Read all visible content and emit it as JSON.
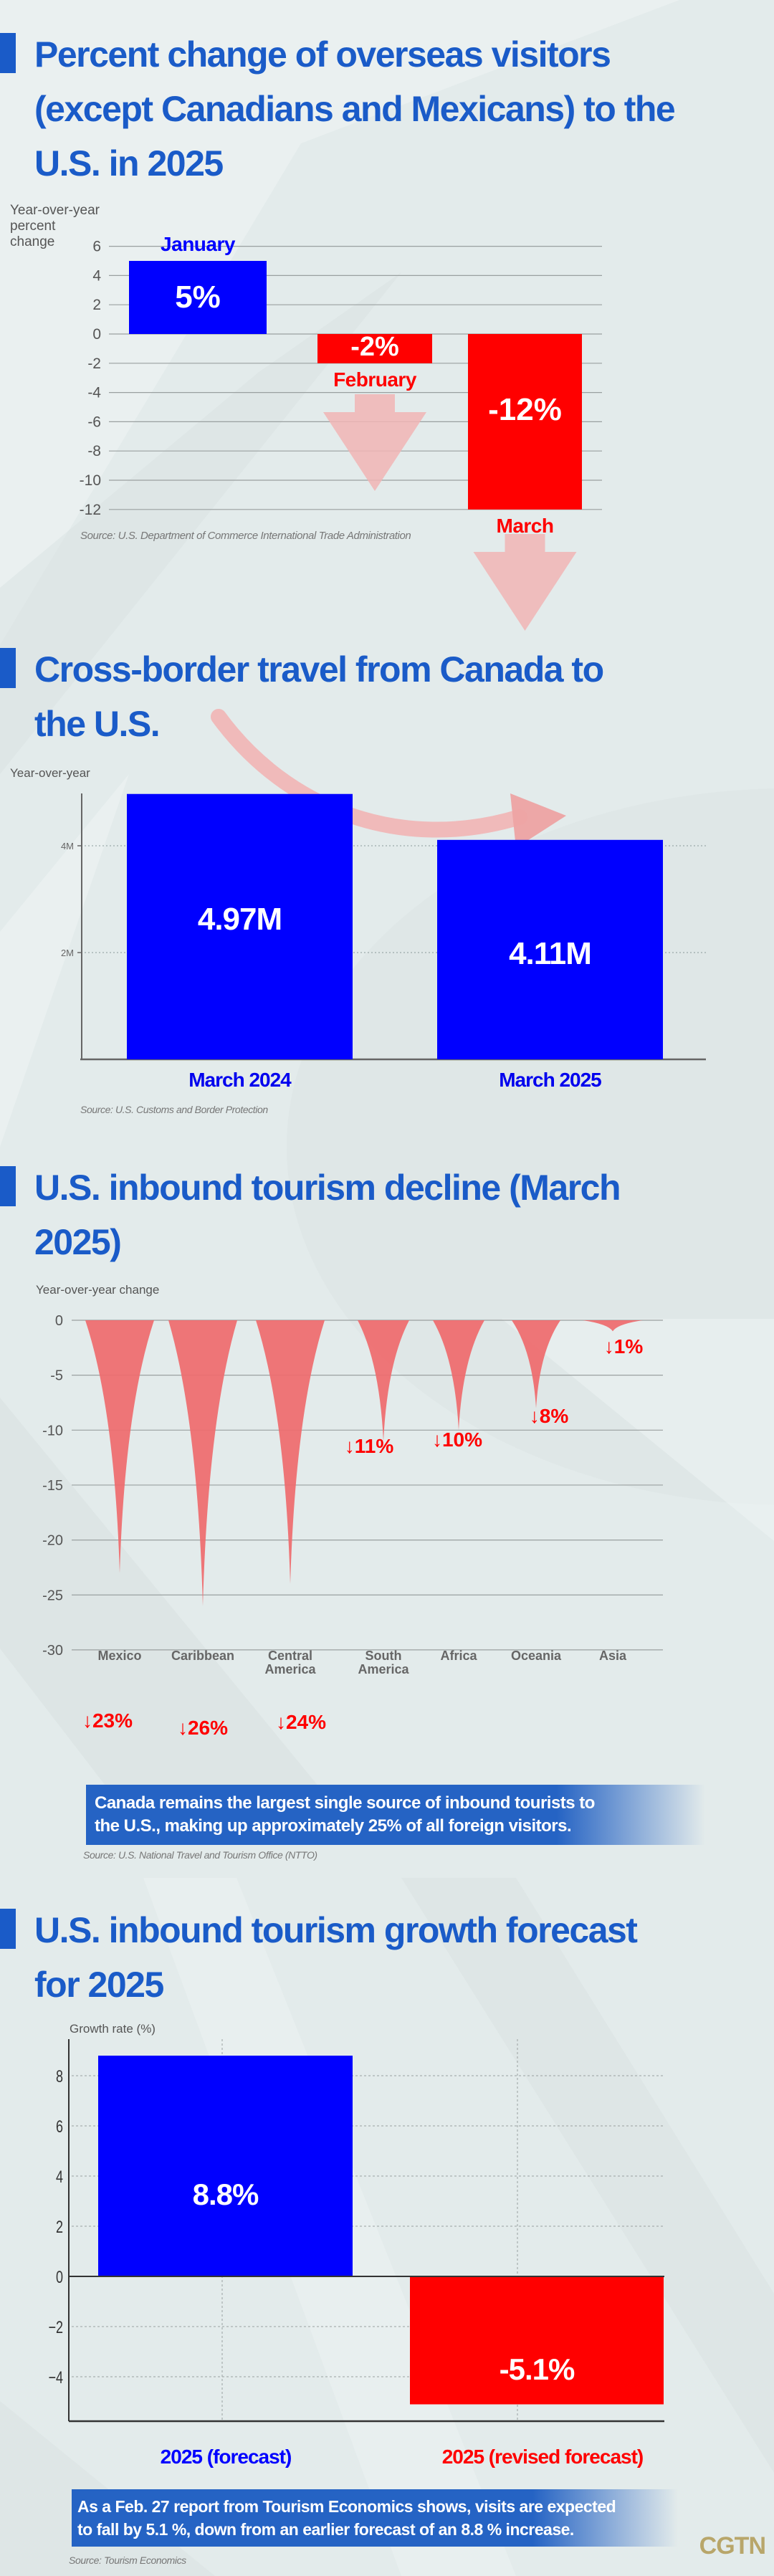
{
  "logo": "CGTN",
  "colors": {
    "title": "#1a5bc8",
    "blue_bar": "#0000ff",
    "red_bar": "#ff0000",
    "funnel": "#ef6a6c",
    "arrow": "#f1b5b5"
  },
  "section1": {
    "title_lines": [
      "Percent change of overseas visitors",
      "(except Canadians and Mexicans) to the",
      "U.S. in 2025"
    ],
    "source": "Source: U.S. Department of Commerce International Trade Administration"
  },
  "section2": {
    "title_lines": [
      "Cross-border travel from Canada to",
      "the U.S."
    ],
    "source": "Source: U.S. Customs and Border Protection"
  },
  "section3": {
    "title_lines": [
      "U.S. inbound tourism decline (March",
      "2025)"
    ],
    "note_lines": [
      "Canada remains the largest single source of inbound tourists to",
      "the U.S., making up approximately 25% of all foreign visitors."
    ],
    "source": "Source: U.S. National Travel and Tourism Office (NTTO)"
  },
  "section4": {
    "title_lines": [
      "U.S. inbound tourism growth forecast",
      "for 2025"
    ],
    "note_lines": [
      "As a Feb. 27 report from Tourism Economics shows, visits are expected",
      "to fall by 5.1 %, down from an earlier forecast of an  8.8 % increase."
    ],
    "source": "Source: Tourism Economics"
  },
  "chart_data": [
    {
      "type": "bar",
      "title": "Percent change of overseas visitors (except Canadians and Mexicans) to the U.S. in 2025",
      "ylabel": "Year-over-year percent change",
      "xlabel": "",
      "categories": [
        "January",
        "February",
        "March"
      ],
      "values": [
        5,
        -2,
        -12
      ],
      "data_labels": [
        "5%",
        "-2%",
        "-12%"
      ],
      "bar_colors": [
        "#0000ff",
        "#ff0000",
        "#ff0000"
      ],
      "yticks": [
        6,
        4,
        2,
        0,
        -2,
        -4,
        -6,
        -8,
        -10,
        -12
      ],
      "ylim": [
        -12,
        6
      ],
      "grid": true
    },
    {
      "type": "bar",
      "title": "Cross-border travel from Canada to the U.S.",
      "ylabel": "Year-over-year",
      "xlabel": "",
      "categories": [
        "March 2024",
        "March 2025"
      ],
      "values": [
        4.97,
        4.11
      ],
      "units": "M",
      "data_labels": [
        "4.97M",
        "4.11M"
      ],
      "yticks": [
        2,
        4
      ],
      "ytick_labels": [
        "2M",
        "4M"
      ],
      "ylim": [
        0,
        5
      ],
      "grid": true
    },
    {
      "type": "bar",
      "title": "U.S. inbound tourism decline (March 2025)",
      "ylabel": "Year-over-year change",
      "xlabel": "",
      "categories": [
        "Mexico",
        "Caribbean",
        "Central America",
        "South America",
        "Africa",
        "Oceania",
        "Asia"
      ],
      "values": [
        -23,
        -26,
        -24,
        -11,
        -10,
        -8,
        -1
      ],
      "data_labels": [
        "↓23%",
        "↓26%",
        "↓24%",
        "↓11%",
        "↓10%",
        "↓8%",
        "↓1%"
      ],
      "yticks": [
        0,
        -5,
        -10,
        -15,
        -20,
        -25,
        -30
      ],
      "ylim": [
        -30,
        0
      ],
      "grid": true
    },
    {
      "type": "bar",
      "title": "U.S. inbound tourism growth forecast for 2025",
      "ylabel": "Growth rate  (%)",
      "xlabel": "",
      "categories": [
        "2025 (forecast)",
        "2025 (revised forecast)"
      ],
      "values": [
        8.8,
        -5.1
      ],
      "data_labels": [
        "8.8%",
        "-5.1%"
      ],
      "bar_colors": [
        "#0000ff",
        "#ff0000"
      ],
      "yticks": [
        8,
        6,
        4,
        2,
        0,
        -2,
        -4
      ],
      "ylim": [
        -6.2,
        9.6
      ],
      "grid": true
    }
  ]
}
